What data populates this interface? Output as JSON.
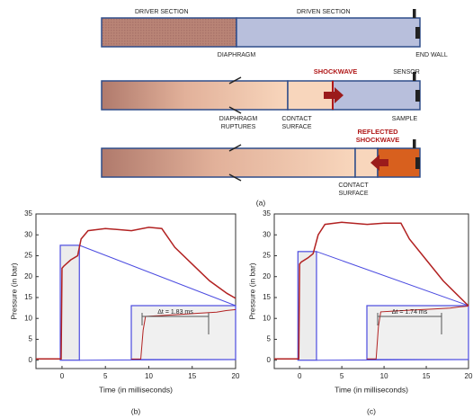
{
  "diagram": {
    "driver_section": "DRIVER SECTION",
    "driven_section": "DRIVEN SECTION",
    "diaphragm": "DIAPHRAGM",
    "end_wall": "END WALL",
    "shockwave": "SHOCKWAVE",
    "sensor": "SENSOR",
    "diaphragm_ruptures": [
      "DIAPHRAGM",
      "RUPTURES"
    ],
    "contact_surface_1": [
      "CONTACT",
      "SURFACE"
    ],
    "sample": "SAMPLE",
    "reflected_shockwave": [
      "REFLECTED",
      "SHOCKWAVE"
    ],
    "contact_surface_2": [
      "CONTACT",
      "SURFACE"
    ],
    "caption": "(a)"
  },
  "chart_data": [
    {
      "type": "line",
      "caption": "(b)",
      "x_label": "Time (in milliseconds)",
      "y_label": "Pressure (in bar)",
      "x": [
        -3,
        -0.1,
        0,
        0.2,
        1,
        1.8,
        2.2,
        3,
        5,
        8,
        10,
        11.5,
        13,
        15,
        17,
        19,
        20
      ],
      "series": [
        {
          "color": "#b22222",
          "values": [
            0.3,
            0.3,
            22,
            22.5,
            24,
            25,
            29,
            31,
            31.5,
            31,
            31.8,
            31.5,
            27,
            23,
            19,
            16,
            14.8
          ]
        }
      ],
      "xlim": [
        -3,
        20
      ],
      "ylim": [
        -2,
        35
      ],
      "xticks": [
        0,
        5,
        10,
        15,
        20
      ],
      "yticks": [
        0,
        5,
        10,
        15,
        20,
        25,
        30,
        35
      ],
      "inset": {
        "type": "line",
        "annotation": "Δt = 1.83 ms",
        "x": [
          -0.2,
          0,
          0.05,
          0.1,
          0.4,
          0.8,
          1.2,
          1.6,
          1.8,
          2
        ],
        "series": [
          {
            "color": "#b22222",
            "values": [
              0.3,
              0.3,
              15,
              22,
              22.4,
              23,
              23.6,
              24.2,
              25,
              25.5
            ]
          }
        ],
        "xlim": [
          -0.2,
          2
        ],
        "ylim": [
          0,
          27.5
        ]
      }
    },
    {
      "type": "line",
      "caption": "(c)",
      "x_label": "Time (in milliseconds)",
      "y_label": "Pressure (in bar)",
      "x": [
        -3,
        -0.1,
        0,
        0.2,
        1,
        1.6,
        2.2,
        3,
        5,
        8,
        10,
        12,
        13,
        15,
        17,
        19,
        20
      ],
      "series": [
        {
          "color": "#b22222",
          "values": [
            0.3,
            0.3,
            23,
            23.5,
            24.5,
            25.5,
            30,
            32.5,
            33,
            32.5,
            32.8,
            32.8,
            29,
            24,
            19,
            15,
            13
          ]
        }
      ],
      "xlim": [
        -3,
        20
      ],
      "ylim": [
        -2,
        35
      ],
      "xticks": [
        0,
        5,
        10,
        15,
        20
      ],
      "yticks": [
        0,
        5,
        10,
        15,
        20,
        25,
        30,
        35
      ],
      "inset": {
        "type": "line",
        "annotation": "Δt = 1.74 ms",
        "x": [
          -0.2,
          0,
          0.05,
          0.1,
          0.4,
          0.8,
          1.2,
          1.6,
          1.8,
          2
        ],
        "series": [
          {
            "color": "#b22222",
            "values": [
              0.3,
              0.3,
              16,
              23,
              23.4,
              23.9,
              24.3,
              24.8,
              25.4,
              25.8
            ]
          }
        ],
        "xlim": [
          -0.2,
          2
        ],
        "ylim": [
          0,
          26
        ]
      }
    }
  ]
}
